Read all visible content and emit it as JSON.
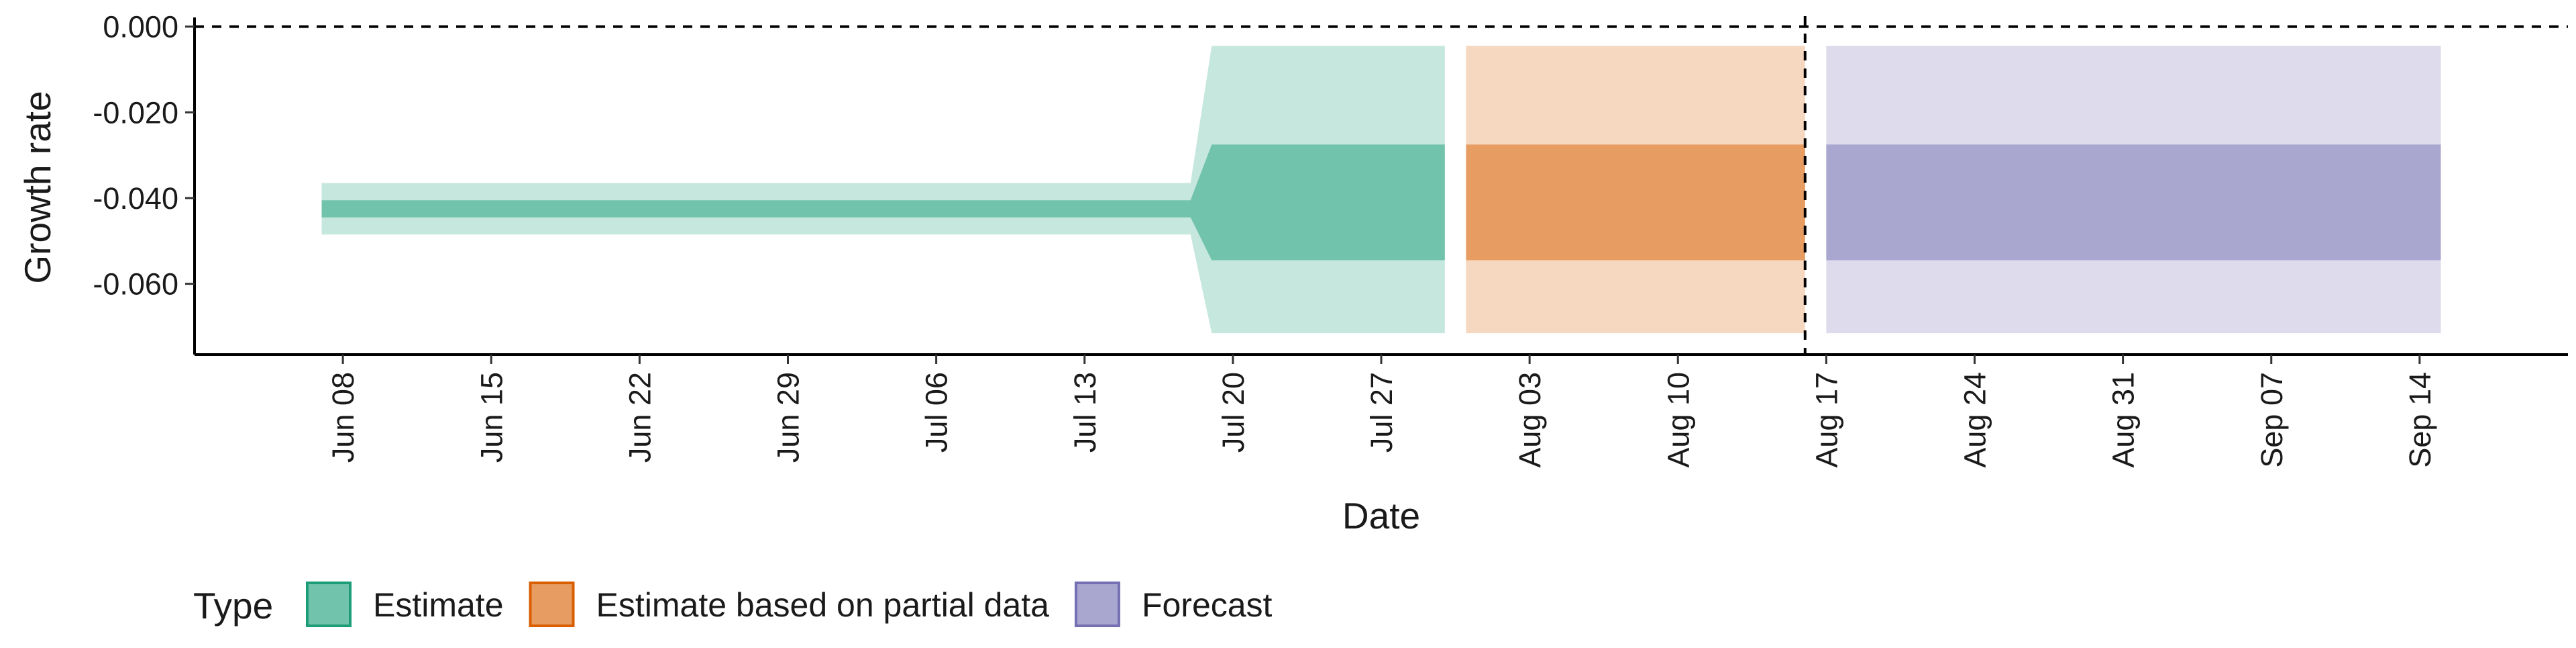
{
  "chart_data": {
    "type": "area",
    "xlabel": "Date",
    "ylabel": "Growth rate",
    "x_range": [
      "2020-06-01",
      "2020-09-21"
    ],
    "ylim": [
      -0.0765,
      0.0015
    ],
    "y_ticks": [
      0.0,
      -0.02,
      -0.04,
      -0.06
    ],
    "y_tick_labels": [
      "0.000",
      "-0.020",
      "-0.040",
      "-0.060"
    ],
    "x_ticks": [
      "2020-06-08",
      "2020-06-15",
      "2020-06-22",
      "2020-06-29",
      "2020-07-06",
      "2020-07-13",
      "2020-07-20",
      "2020-07-27",
      "2020-08-03",
      "2020-08-10",
      "2020-08-17",
      "2020-08-24",
      "2020-08-31",
      "2020-09-07",
      "2020-09-14"
    ],
    "x_tick_labels": [
      "Jun 08",
      "Jun 15",
      "Jun 22",
      "Jun 29",
      "Jul 06",
      "Jul 13",
      "Jul 20",
      "Jul 27",
      "Aug 03",
      "Aug 10",
      "Aug 17",
      "Aug 24",
      "Aug 31",
      "Sep 07",
      "Sep 14"
    ],
    "hline": 0.0,
    "vline": "2020-08-16",
    "legend": {
      "title": "Type",
      "position": "bottom",
      "entries": [
        {
          "label": "Estimate",
          "color": "#1b9e77"
        },
        {
          "label": "Estimate based on partial data",
          "color": "#d95f02"
        },
        {
          "label": "Forecast",
          "color": "#7570b3"
        }
      ]
    },
    "series": [
      {
        "name": "Estimate",
        "color": "#1b9e77",
        "x": [
          "2020-06-07",
          "2020-07-18",
          "2020-07-19",
          "2020-07-30"
        ],
        "median": [
          -0.0425,
          -0.0425,
          -0.041,
          -0.041
        ],
        "lower_50": [
          -0.0445,
          -0.0445,
          -0.0545,
          -0.0545
        ],
        "upper_50": [
          -0.0405,
          -0.0405,
          -0.0275,
          -0.0275
        ],
        "lower_90": [
          -0.0485,
          -0.0485,
          -0.0715,
          -0.0715
        ],
        "upper_90": [
          -0.0365,
          -0.0365,
          -0.0045,
          -0.0045
        ]
      },
      {
        "name": "Estimate based on partial data",
        "color": "#d95f02",
        "x": [
          "2020-07-31",
          "2020-08-16"
        ],
        "median": [
          -0.041,
          -0.041
        ],
        "lower_50": [
          -0.0545,
          -0.0545
        ],
        "upper_50": [
          -0.0275,
          -0.0275
        ],
        "lower_90": [
          -0.0715,
          -0.0715
        ],
        "upper_90": [
          -0.0045,
          -0.0045
        ]
      },
      {
        "name": "Forecast",
        "color": "#7570b3",
        "x": [
          "2020-08-17",
          "2020-09-15"
        ],
        "median": [
          -0.041,
          -0.041
        ],
        "lower_50": [
          -0.0545,
          -0.0545
        ],
        "upper_50": [
          -0.0275,
          -0.0275
        ],
        "lower_90": [
          -0.0715,
          -0.0715
        ],
        "upper_90": [
          -0.0045,
          -0.0045
        ]
      }
    ]
  }
}
